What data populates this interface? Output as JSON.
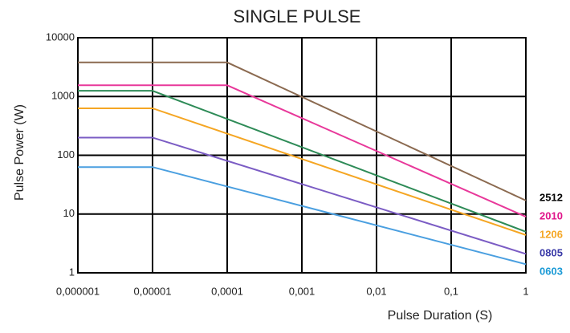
{
  "chart_data": {
    "type": "line",
    "title": "SINGLE PULSE",
    "x_label": "Pulse Duration (S)",
    "y_label": "Pulse Power (W)",
    "xscale": "log",
    "yscale": "log",
    "grid": true,
    "legend": "right",
    "xlim": [
      1e-06,
      1
    ],
    "ylim": [
      1,
      10000
    ],
    "xticks": [
      {
        "value": 1e-06,
        "label": "0,000001"
      },
      {
        "value": 1e-05,
        "label": "0,00001"
      },
      {
        "value": 0.0001,
        "label": "0,0001"
      },
      {
        "value": 0.001,
        "label": "0,001"
      },
      {
        "value": 0.01,
        "label": "0,01"
      },
      {
        "value": 0.1,
        "label": "0,1"
      },
      1
    ],
    "yticks": [
      1,
      10,
      100,
      1000,
      10000
    ],
    "series": [
      {
        "name": "2512",
        "color": "#8b6a50",
        "label_color": "#000000",
        "x": [
          1e-06,
          0.0001,
          1
        ],
        "values": [
          3800,
          3800,
          17
        ]
      },
      {
        "name": "2010",
        "color": "#e8389a",
        "label_color": "#e0148a",
        "x": [
          1e-06,
          0.0001,
          1
        ],
        "values": [
          1550,
          1550,
          9
        ]
      },
      {
        "color": "#2e8b57",
        "x": [
          1e-06,
          1e-05,
          1
        ],
        "values": [
          1250,
          1250,
          5
        ]
      },
      {
        "name": "1206",
        "color": "#f5a623",
        "label_color": "#f5a623",
        "x": [
          1e-06,
          1e-05,
          1
        ],
        "values": [
          630,
          630,
          4.4
        ]
      },
      {
        "name": "0805",
        "color": "#7b5cc4",
        "label_color": "#3a3aa8",
        "x": [
          1e-06,
          1e-05,
          1
        ],
        "values": [
          200,
          200,
          2.1
        ]
      },
      {
        "name": "0603",
        "color": "#4a9fe0",
        "label_color": "#1a9ad6",
        "x": [
          1e-06,
          1e-05,
          1
        ],
        "values": [
          63,
          63,
          1.4
        ]
      }
    ]
  }
}
